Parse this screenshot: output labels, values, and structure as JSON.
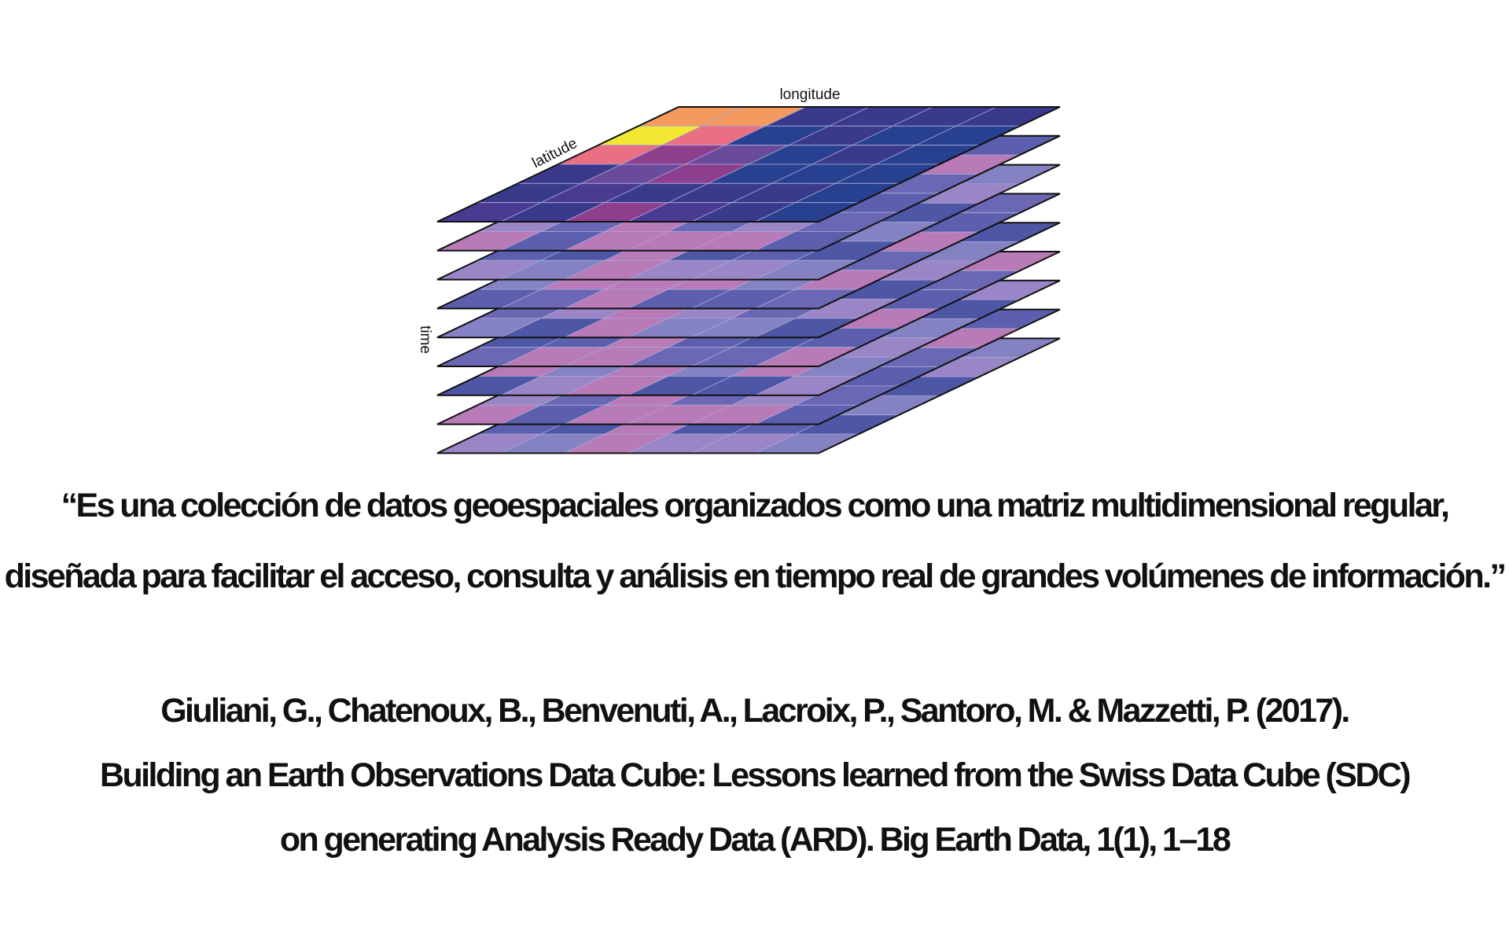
{
  "diagram": {
    "axis_labels": {
      "longitude": "longitude",
      "latitude": "latitude",
      "time": "time"
    },
    "layer_count": 9,
    "grid": {
      "rows": 6,
      "cols": 6
    },
    "colors": {
      "outline": "#111111",
      "grid_line": "#a9a7d6",
      "top_palette": [
        "#3a3a8c",
        "#4b3a92",
        "#27408f",
        "#6a4a9a",
        "#8d3f8e",
        "#ea6f83",
        "#f49a5e",
        "#f4e732"
      ],
      "lower_palette": [
        "#6a68b4",
        "#8582c4",
        "#5b5fae",
        "#9a86c6",
        "#b97ab8",
        "#4e56a6"
      ]
    },
    "top_layer_pattern": [
      [
        6,
        6,
        0,
        0,
        0,
        0
      ],
      [
        7,
        5,
        2,
        0,
        2,
        2
      ],
      [
        5,
        4,
        3,
        2,
        0,
        2
      ],
      [
        0,
        3,
        4,
        2,
        2,
        2
      ],
      [
        0,
        1,
        0,
        0,
        0,
        2
      ],
      [
        1,
        0,
        4,
        1,
        0,
        2
      ]
    ]
  },
  "quote": {
    "line1": "“Es una colección de datos geoespaciales organizados como una matriz multidimensional regular,",
    "line2": "diseñada para facilitar el acceso, consulta y análisis en tiempo real de grandes volúmenes de información.”"
  },
  "citation": {
    "line1": "Giuliani, G., Chatenoux, B., Benvenuti, A., Lacroix, P., Santoro, M. & Mazzetti, P. (2017).",
    "line2": "Building an Earth Observations Data Cube: Lessons learned from the Swiss Data Cube (SDC)",
    "line3": "on generating Analysis Ready Data (ARD). Big Earth Data, 1(1), 1–18"
  }
}
